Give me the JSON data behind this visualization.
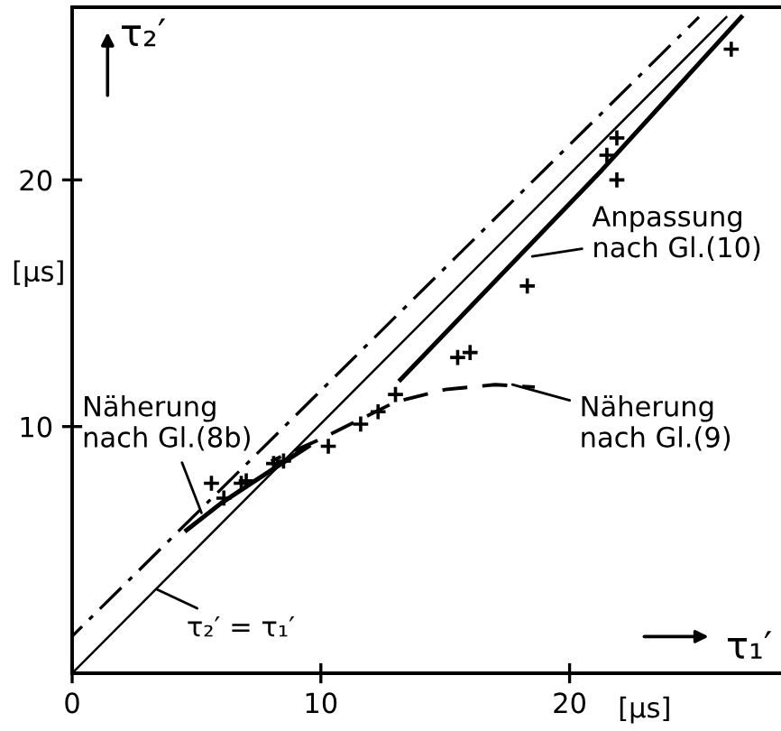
{
  "chart_data": {
    "type": "line",
    "xlabel": "τ₁′",
    "ylabel": "τ₂′",
    "xlim": [
      0,
      28.5
    ],
    "ylim": [
      0,
      27
    ],
    "xticks": [
      0,
      10,
      20
    ],
    "yticks": [
      10,
      20
    ],
    "grid": false,
    "series": [
      {
        "color": "#000000",
        "line_style": "dashdot",
        "x": [
          0,
          25.2
        ],
        "values": [
          1.5,
          26.6
        ]
      },
      {
        "color": "#000000",
        "line_style": "solid",
        "x": [
          0,
          26.3
        ],
        "values": [
          0,
          26.6
        ]
      },
      {
        "color": "#000000",
        "line_style": "solid",
        "x": [
          13.2,
          21.3,
          26.9
        ],
        "values": [
          11.9,
          20.4,
          26.6
        ]
      },
      {
        "color": "#000000",
        "line_style": "solid",
        "x": [
          4.6,
          6.0,
          7.5,
          9.5
        ],
        "values": [
          5.8,
          6.9,
          7.9,
          9.2
        ]
      },
      {
        "color": "#000000",
        "line_style": "dashed",
        "x": [
          8.0,
          10.0,
          13.0,
          15.0,
          17.0,
          18.6
        ],
        "values": [
          8.6,
          9.5,
          11.0,
          11.5,
          11.7,
          11.6
        ]
      },
      {
        "type": "scatter",
        "color": "#000000",
        "marker": "cross",
        "x": [
          5.6,
          6.1,
          6.8,
          7.0,
          8.1,
          8.5,
          10.3,
          11.6,
          12.3,
          13.0,
          15.5,
          16.0,
          18.3,
          21.5,
          21.9,
          21.9,
          26.5
        ],
        "values": [
          7.7,
          7.1,
          7.7,
          7.8,
          8.5,
          8.6,
          9.2,
          10.1,
          10.6,
          11.3,
          12.8,
          13.0,
          15.7,
          21.0,
          21.7,
          20.0,
          25.3
        ]
      }
    ],
    "annotations": [
      {
        "text": "Anpassung\nnach Gl.(10)",
        "x": 18.5,
        "y": 16.9
      },
      {
        "text": "Näherung\nnach Gl.(8b)",
        "x": 5.2,
        "y": 6.5
      },
      {
        "text": "Näherung\nnach Gl.(9)",
        "x": 17.7,
        "y": 11.7
      },
      {
        "text": "τ₂′ = τ₁′",
        "x": 3.4,
        "y": 3.4
      },
      "[μs]",
      "[μs]"
    ]
  }
}
